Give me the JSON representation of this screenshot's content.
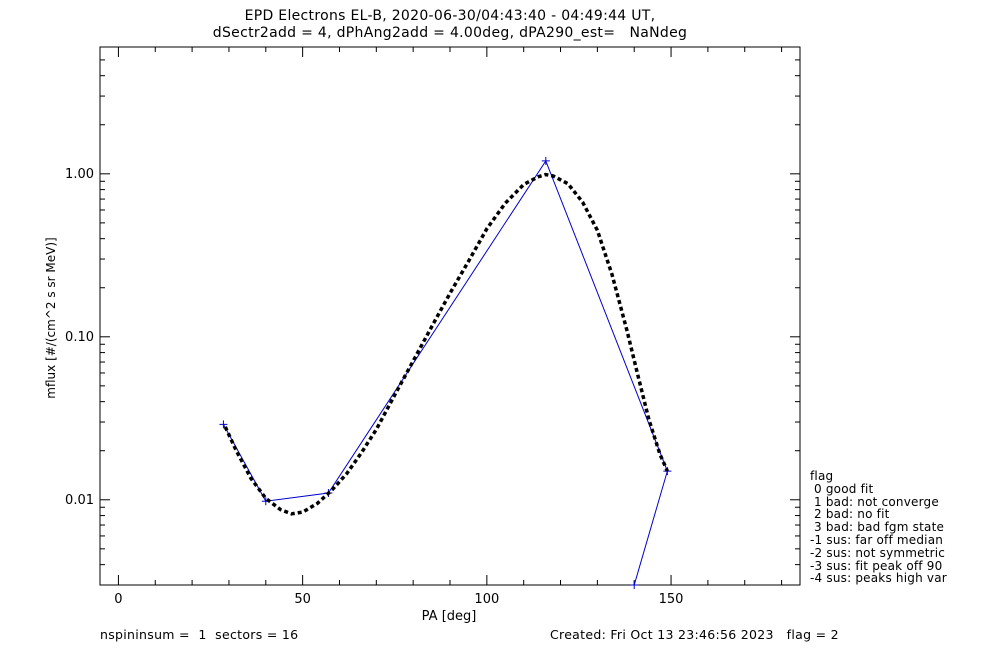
{
  "title_line1": "EPD Electrons EL-B, 2020-06-30/04:43:40 - 04:49:44 UT,",
  "title_line2": "dSectr2add = 4, dPhAng2add = 4.00deg, dPA290_est=   NaNdeg",
  "footer": {
    "left": "nspininsum =  1  sectors = 16",
    "right": "Created: Fri Oct 13 23:46:56 2023   flag = 2"
  },
  "legend": {
    "title": "flag",
    "items": [
      " 0 good fit",
      " 1 bad: not converge",
      " 2 bad: no fit",
      " 3 bad: bad fgm state",
      "-1 sus: far off median",
      "-2 sus: not symmetric",
      "-3 sus: fit peak off 90",
      "-4 sus: peaks high var"
    ]
  },
  "colors": {
    "data": "#0000cc",
    "fit": "#000000",
    "axes": "#000000"
  },
  "chart_data": {
    "type": "line",
    "xlabel": "PA [deg]",
    "ylabel": "mflux [#/(cm^2 s sr MeV)]",
    "xlim": [
      -5,
      185
    ],
    "ylim": [
      0.003,
      6.0
    ],
    "yscale": "log",
    "xticks": [
      0,
      50,
      100,
      150
    ],
    "xtick_labels": [
      "0",
      "50",
      "100",
      "150"
    ],
    "yticks": [
      0.01,
      0.1,
      1.0
    ],
    "ytick_labels": [
      "0.01",
      "0.10",
      "1.00"
    ],
    "series": [
      {
        "style": "solid-blue-with-plus-markers",
        "x": [
          28.5,
          40,
          57,
          116,
          149,
          140
        ],
        "y": [
          0.029,
          0.0098,
          0.011,
          1.2,
          0.015,
          0.003
        ]
      },
      {
        "style": "dashed-black-fit",
        "x": [
          29,
          32,
          36,
          40,
          44,
          47,
          50,
          54,
          58,
          62,
          66,
          70,
          75,
          80,
          85,
          90,
          95,
          100,
          105,
          110,
          114,
          116,
          118,
          122,
          126,
          130,
          134,
          138,
          141,
          144,
          147,
          149
        ],
        "y": [
          0.028,
          0.02,
          0.0135,
          0.0102,
          0.0087,
          0.0082,
          0.0084,
          0.0095,
          0.0115,
          0.0145,
          0.0195,
          0.027,
          0.044,
          0.071,
          0.115,
          0.185,
          0.29,
          0.46,
          0.66,
          0.86,
          0.96,
          0.99,
          0.97,
          0.87,
          0.67,
          0.45,
          0.24,
          0.11,
          0.058,
          0.031,
          0.019,
          0.015
        ]
      }
    ]
  }
}
